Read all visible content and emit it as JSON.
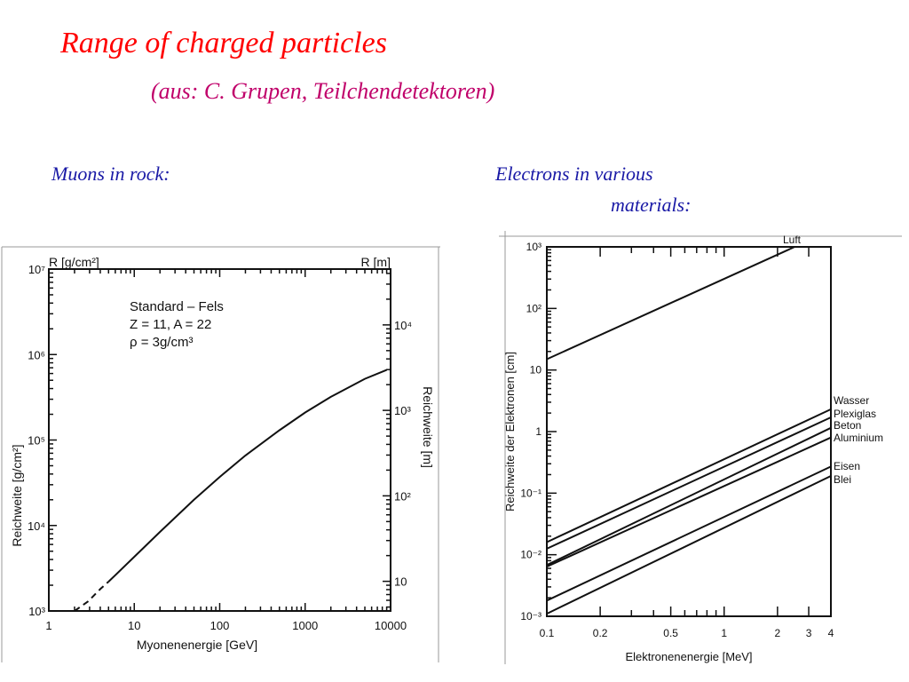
{
  "slide": {
    "title": "Range of charged particles",
    "subtitle": "(aus: C. Grupen, Teilchendetektoren)",
    "left_caption": "Muons in rock:",
    "right_caption_line1": "Electrons in various",
    "right_caption_line2": "materials:"
  },
  "chart_data": [
    {
      "type": "line",
      "xlabel": "Myonenenergie  [GeV]",
      "ylabel": "Reichweite  [g/cm²]",
      "ylabel_right": "Reichweite  [m]",
      "y_unit_top_left": "R [g/cm²]",
      "y_unit_top_right": "R [m]",
      "xscale": "log",
      "yscale": "log",
      "xlim": [
        1,
        10000
      ],
      "ylim": [
        1000,
        10000000
      ],
      "x_ticks": [
        "1",
        "10",
        "100",
        "1000",
        "10000"
      ],
      "y_ticks": [
        "10³",
        "10⁴",
        "10⁵",
        "10⁶",
        "10⁷"
      ],
      "y_right_ticks": [
        "10",
        "10²",
        "10³",
        "10⁴"
      ],
      "y_right_lim": [
        4.5,
        45000
      ],
      "annotation_lines": [
        "Standard – Fels",
        "Z = 11, A = 22",
        "ρ = 3g/cm³"
      ],
      "series": [
        {
          "style": "dashed",
          "x": [
            2,
            2.9,
            4,
            5
          ],
          "y": [
            1000,
            1300,
            1800,
            2200
          ]
        },
        {
          "style": "solid",
          "x": [
            5,
            10,
            20,
            50,
            100,
            200,
            500,
            1000,
            2000,
            5000,
            9000
          ],
          "y": [
            2200,
            4300,
            8400,
            20000,
            37000,
            66000,
            130000,
            210000,
            320000,
            520000,
            660000
          ]
        }
      ]
    },
    {
      "type": "line",
      "xlabel": "Elektronenenergie  [MeV]",
      "ylabel": "Reichweite  der Elektronen [cm]",
      "xscale": "log",
      "yscale": "log",
      "xlim": [
        0.1,
        4
      ],
      "ylim": [
        0.001,
        1000
      ],
      "x_ticks": [
        "0.1",
        "0.2",
        "0.5",
        "1",
        "2",
        "3",
        "4"
      ],
      "y_ticks": [
        "10⁻³",
        "10⁻²",
        "10⁻¹",
        "1",
        "10",
        "10²",
        "10³"
      ],
      "series": [
        {
          "name": "Luft",
          "x": [
            0.1,
            2.5
          ],
          "y": [
            15,
            1000
          ]
        },
        {
          "name": "Wasser",
          "x": [
            0.1,
            4
          ],
          "y": [
            0.016,
            2.3
          ]
        },
        {
          "name": "Plexiglas",
          "x": [
            0.1,
            4
          ],
          "y": [
            0.0125,
            1.7
          ]
        },
        {
          "name": "Beton",
          "x": [
            0.1,
            4
          ],
          "y": [
            0.0068,
            1.15
          ]
        },
        {
          "name": "Aluminium",
          "x": [
            0.1,
            4
          ],
          "y": [
            0.0064,
            0.8
          ]
        },
        {
          "name": "Eisen",
          "x": [
            0.1,
            4
          ],
          "y": [
            0.0018,
            0.27
          ]
        },
        {
          "name": "Blei",
          "x": [
            0.1,
            4
          ],
          "y": [
            0.0011,
            0.19
          ]
        }
      ]
    }
  ]
}
